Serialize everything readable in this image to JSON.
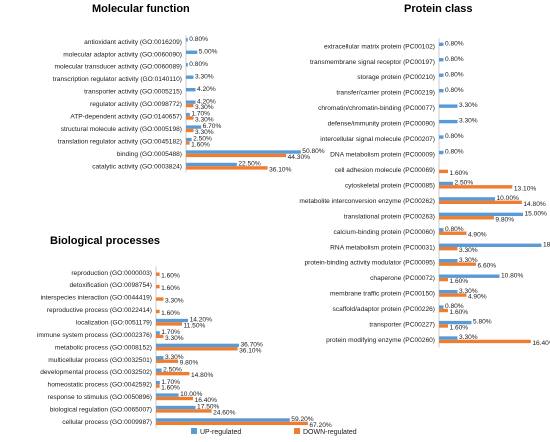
{
  "colors": {
    "up": "#5b9bd5",
    "down": "#ed7d31",
    "axis": "#bfbfbf"
  },
  "legend": {
    "up_label": "UP-regulated",
    "down_label": "DOWN-regulated"
  },
  "chart_data": [
    {
      "type": "bar",
      "orientation": "horizontal",
      "title": "Molecular function",
      "categories": [
        "antioxidant activity (GO:0016209)",
        "molecular adaptor activity (GO:0060090)",
        "molecular transducer activity (GO:0060089)",
        "transcription regulator activity (GO:0140110)",
        "transporter activity (GO:0005215)",
        "regulator activity (GO:0098772)",
        "ATP-dependent activity (GO:0140657)",
        "structural molecule activity (GO:0005198)",
        "translation regulator activity (GO:0045182)",
        "binding (GO:0005488)",
        "catalytic activity (GO:0003824)"
      ],
      "series": [
        {
          "name": "UP-regulated",
          "values": [
            0.8,
            5.0,
            0.8,
            3.3,
            4.2,
            4.2,
            1.7,
            6.7,
            2.5,
            50.8,
            22.5
          ],
          "labels": [
            "0.80%",
            "5.00%",
            "0.80%",
            "3.30%",
            "4.20%",
            "4.20%",
            "1.70%",
            "6.70%",
            "2.50%",
            "50.80%",
            "22.50%"
          ]
        },
        {
          "name": "DOWN-regulated",
          "values": [
            null,
            null,
            null,
            null,
            null,
            3.3,
            3.3,
            3.3,
            1.6,
            44.3,
            36.1
          ],
          "labels": [
            "",
            "",
            "",
            "",
            "",
            "3.30%",
            "3.30%",
            "3.30%",
            "1.60%",
            "44.30%",
            "36.10%"
          ]
        }
      ]
    },
    {
      "type": "bar",
      "orientation": "horizontal",
      "title": "Biological processes",
      "categories": [
        "reproduction (GO:0000003)",
        "detoxification (GO:0098754)",
        "interspecies interaction (GO:0044419)",
        "reproductive process (GO:0022414)",
        "localization (GO:0051179)",
        "immune system process (GO:0002376)",
        "metabolic process (GO:0008152)",
        "multicellular process (GO:0032501)",
        "developmental process (GO:0032502)",
        "homeostatic process (GO:0042592)",
        "response to stimulus (GO:0050896)",
        "biological regulation (GO:0065007)",
        "cellular process (GO:0009987)"
      ],
      "series": [
        {
          "name": "UP-regulated",
          "values": [
            null,
            null,
            null,
            null,
            14.2,
            1.7,
            36.7,
            3.3,
            2.5,
            1.7,
            10.0,
            17.5,
            59.2
          ],
          "labels": [
            "",
            "",
            "",
            "",
            "14.20%",
            "1.70%",
            "36.70%",
            "3.30%",
            "2.50%",
            "1.70%",
            "10.00%",
            "17.50%",
            "59.20%"
          ]
        },
        {
          "name": "DOWN-regulated",
          "values": [
            1.6,
            1.6,
            3.3,
            1.6,
            11.5,
            3.3,
            36.1,
            9.8,
            14.8,
            1.6,
            16.4,
            24.6,
            67.2
          ],
          "labels": [
            "1.60%",
            "1.60%",
            "3.30%",
            "1.60%",
            "11.50%",
            "3.30%",
            "36.10%",
            "9.80%",
            "14.80%",
            "1.60%",
            "16.40%",
            "24.60%",
            "67.20%"
          ]
        }
      ]
    },
    {
      "type": "bar",
      "orientation": "horizontal",
      "title": "Protein class",
      "categories": [
        "extracellular matrix protein (PC00102)",
        "transmembrane signal receptor (PC00197)",
        "storage protein (PC00210)",
        "transfer/carrier protein (PC00219)",
        "chromatin/chromatin-binding (PC00077)",
        "defense/immunity protein (PC00090)",
        "intercellular signal molecule (PC00207)",
        "DNA metabolism protein (PC00009)",
        "cell adhesion molecule (PC00069)",
        "cytoskeletal protein (PC00085)",
        "metabolite interconversion enzyme (PC00262)",
        "translational protein (PC00263)",
        "calcium-binding protein (PC00060)",
        "RNA metabolism protein (PC00031)",
        "protein-binding activity modulator (PC00095)",
        "chaperone (PC00072)",
        "membrane traffic protein (PC00150)",
        "scaffold/adaptor protein (PC00226)",
        "transporter (PC00227)",
        "protein modifying enzyme (PC00260)"
      ],
      "series": [
        {
          "name": "UP-regulated",
          "values": [
            0.8,
            0.8,
            0.8,
            0.8,
            3.3,
            3.3,
            0.8,
            0.8,
            null,
            2.5,
            10.0,
            15.0,
            0.8,
            18.3,
            3.3,
            10.8,
            3.3,
            0.8,
            5.8,
            3.3
          ],
          "labels": [
            "0.80%",
            "0.80%",
            "0.80%",
            "0.80%",
            "3.30%",
            "3.30%",
            "0.80%",
            "0.80%",
            "",
            "2.50%",
            "10.00%",
            "15.00%",
            "0.80%",
            "18.30%",
            "3.30%",
            "10.80%",
            "3.30%",
            "0.80%",
            "5.80%",
            "3.30%"
          ]
        },
        {
          "name": "DOWN-regulated",
          "values": [
            null,
            null,
            null,
            null,
            null,
            null,
            null,
            null,
            1.6,
            13.1,
            14.8,
            9.8,
            4.9,
            3.3,
            6.6,
            1.6,
            4.9,
            1.6,
            1.6,
            16.4
          ],
          "labels": [
            "",
            "",
            "",
            "",
            "",
            "",
            "",
            "",
            "1.60%",
            "13.10%",
            "14.80%",
            "9.80%",
            "4.90%",
            "3.30%",
            "6.60%",
            "1.60%",
            "4.90%",
            "1.60%",
            "1.60%",
            "16.40%"
          ]
        }
      ]
    }
  ]
}
